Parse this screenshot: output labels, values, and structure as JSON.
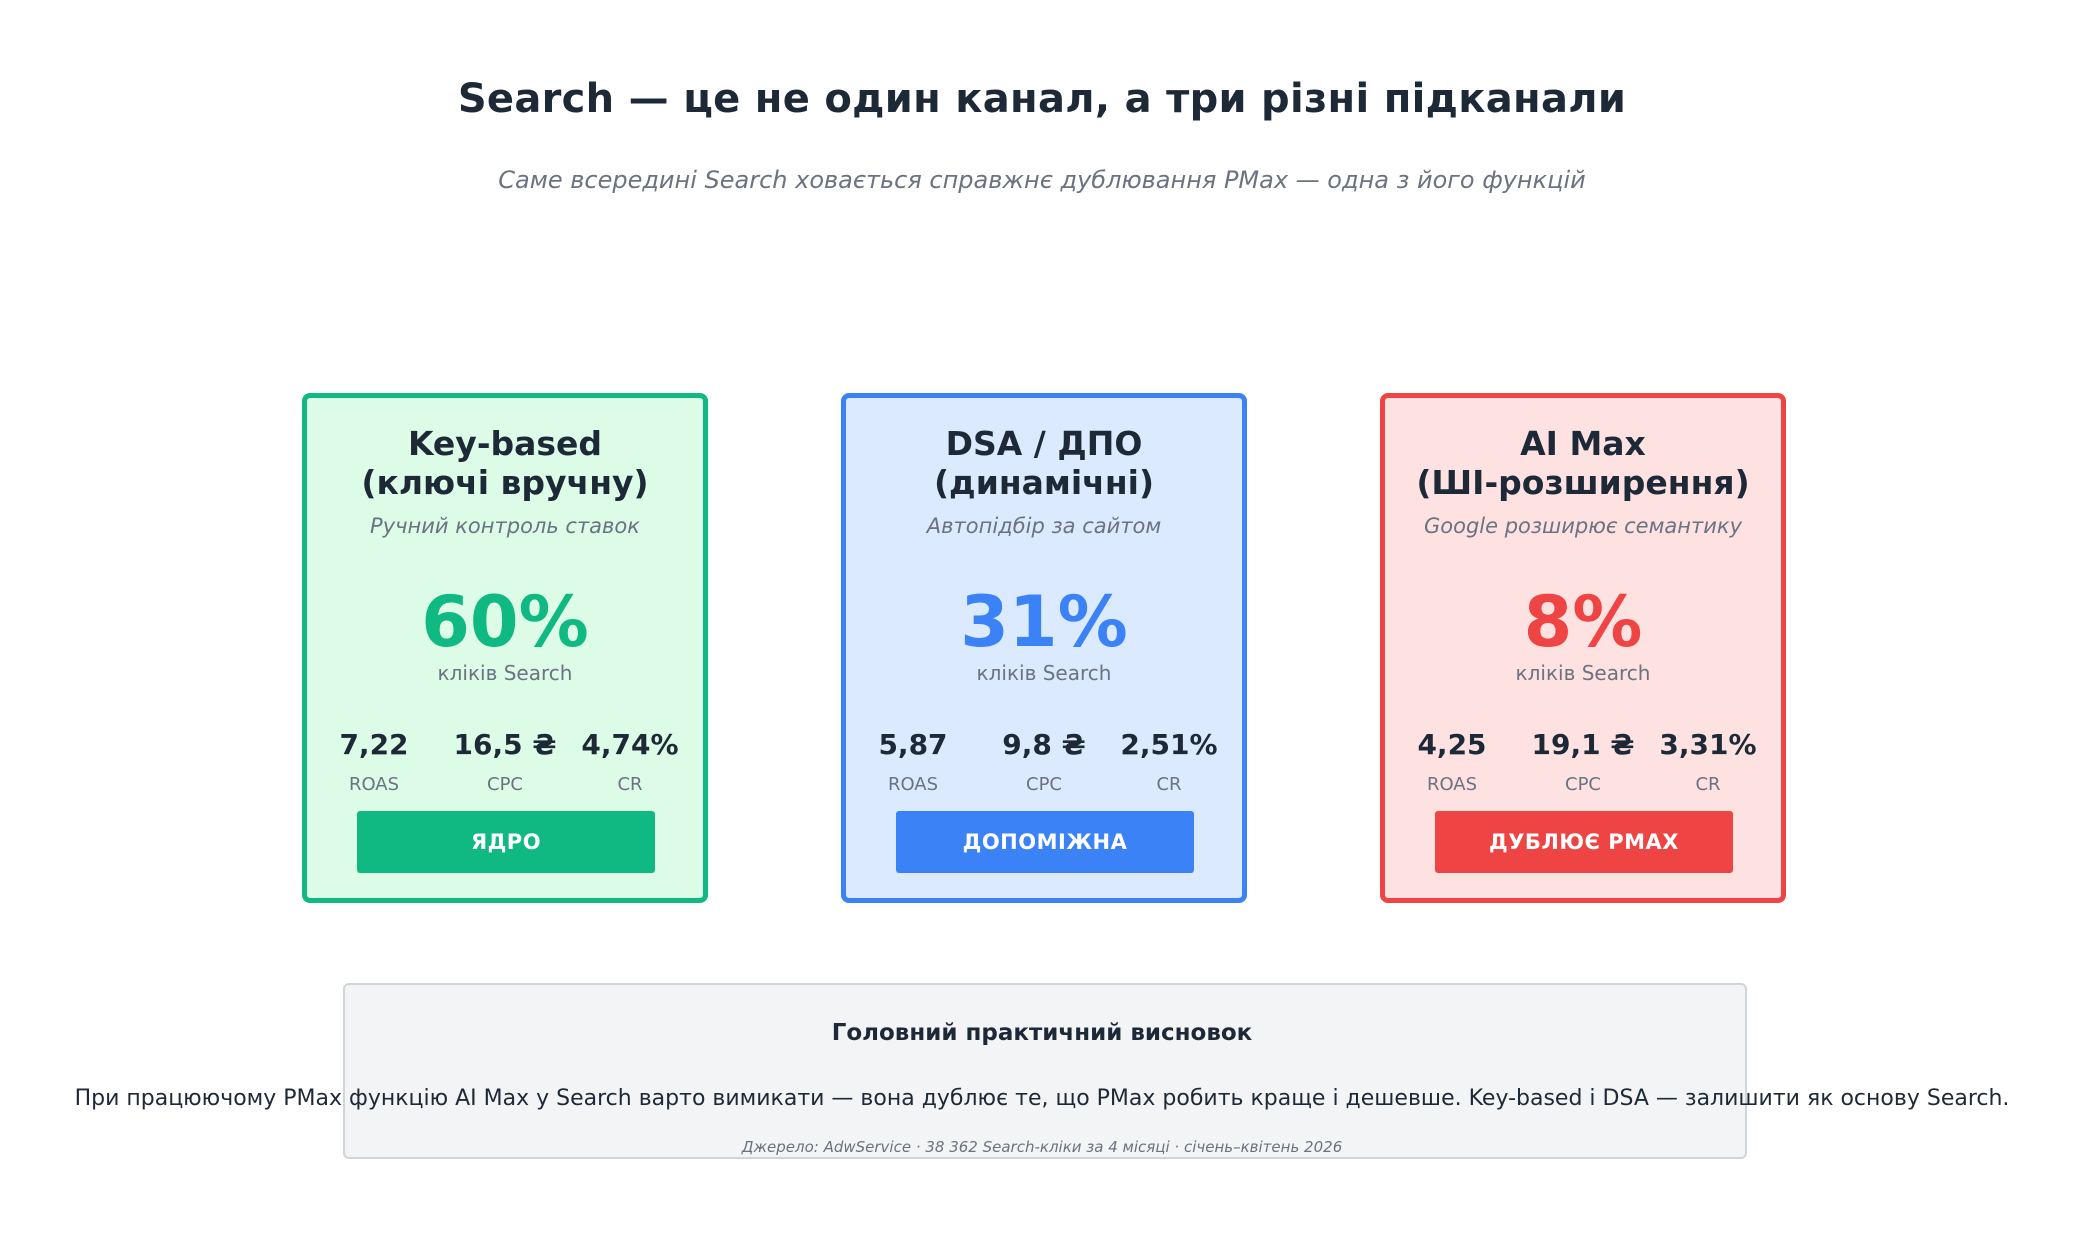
{
  "header": {
    "title": "Search — це не один канал, а три різні підканали",
    "subtitle": "Саме всередині Search ховається справжнє дублювання PMax — одна з його функцій"
  },
  "cards": [
    {
      "title_line1": "Key-based",
      "title_line2": "(ключі вручну)",
      "tagline": "Ручний контроль ставок",
      "share": "60%",
      "share_caption": "кліків Search",
      "metrics": [
        {
          "value": "7,22",
          "label": "ROAS"
        },
        {
          "value": "16,5 ₴",
          "label": "CPC"
        },
        {
          "value": "4,74%",
          "label": "CR"
        }
      ],
      "badge": "ЯДРО",
      "colors": {
        "border": "#10b981",
        "bg": "#dcfce7",
        "accent": "#10b981"
      }
    },
    {
      "title_line1": "DSA / ДПО",
      "title_line2": "(динамічні)",
      "tagline": "Автопідбір за сайтом",
      "share": "31%",
      "share_caption": "кліків Search",
      "metrics": [
        {
          "value": "5,87",
          "label": "ROAS"
        },
        {
          "value": "9,8 ₴",
          "label": "CPC"
        },
        {
          "value": "2,51%",
          "label": "CR"
        }
      ],
      "badge": "ДОПОМІЖНА",
      "colors": {
        "border": "#3b82f6",
        "bg": "#dbeafe",
        "accent": "#3b82f6"
      }
    },
    {
      "title_line1": "AI Max",
      "title_line2": "(ШІ-розширення)",
      "tagline": "Google розширює семантику",
      "share": "8%",
      "share_caption": "кліків Search",
      "metrics": [
        {
          "value": "4,25",
          "label": "ROAS"
        },
        {
          "value": "19,1 ₴",
          "label": "CPC"
        },
        {
          "value": "3,31%",
          "label": "CR"
        }
      ],
      "badge": "ДУБЛЮЄ PMAX",
      "colors": {
        "border": "#ef4444",
        "bg": "#fee2e2",
        "accent": "#ef4444"
      }
    }
  ],
  "summary": {
    "title": "Головний практичний висновок",
    "text": "При працюючому PMax функцію AI Max у Search варто вимикати — вона дублює те, що PMax робить краще і дешевше. Key-based і DSA — залишити як основу Search.",
    "source": "Джерело: AdwService · 38 362 Search-кліки за 4 місяці · січень–квітень 2026"
  }
}
